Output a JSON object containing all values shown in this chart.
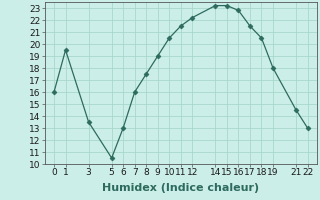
{
  "x": [
    0,
    1,
    3,
    5,
    6,
    7,
    8,
    9,
    10,
    11,
    12,
    14,
    15,
    16,
    17,
    18,
    19,
    21,
    22
  ],
  "y": [
    16,
    19.5,
    13.5,
    10.5,
    13,
    16,
    17.5,
    19,
    20.5,
    21.5,
    22.2,
    23.2,
    23.2,
    22.8,
    21.5,
    20.5,
    18,
    14.5,
    13
  ],
  "line_color": "#2d6b5e",
  "marker": "D",
  "marker_size": 2.5,
  "bg_color": "#cceee8",
  "grid_color": "#a8d8cc",
  "xlabel": "Humidex (Indice chaleur)",
  "xlim": [
    -0.8,
    22.8
  ],
  "ylim": [
    10,
    23.5
  ],
  "xticks": [
    0,
    1,
    3,
    5,
    6,
    7,
    8,
    9,
    10,
    11,
    12,
    14,
    15,
    16,
    17,
    18,
    19,
    21,
    22
  ],
  "yticks": [
    10,
    11,
    12,
    13,
    14,
    15,
    16,
    17,
    18,
    19,
    20,
    21,
    22,
    23
  ],
  "xlabel_fontsize": 8,
  "tick_fontsize": 6.5
}
